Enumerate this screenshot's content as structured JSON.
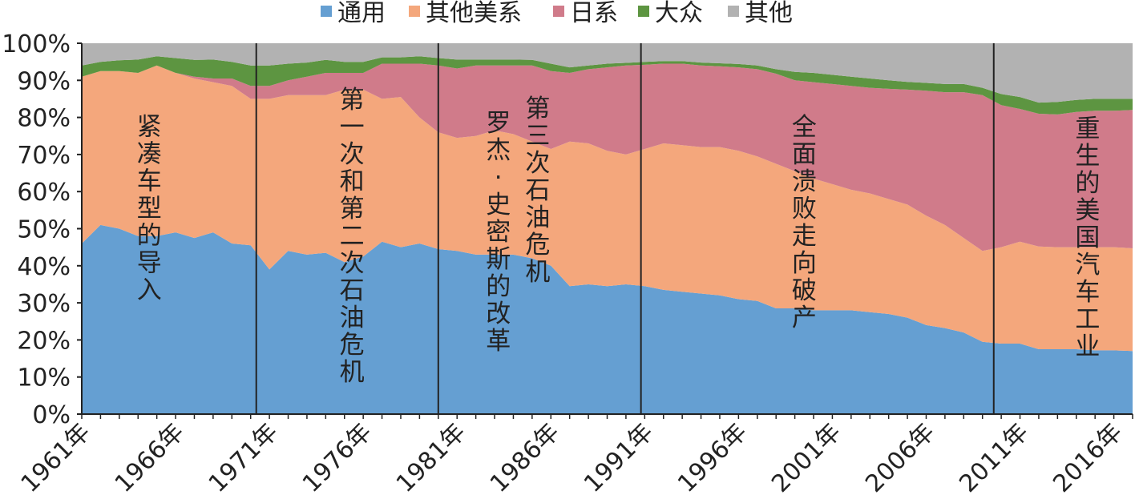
{
  "chart_data": {
    "type": "area",
    "stacked": true,
    "normalized": true,
    "x": [
      1961,
      1962,
      1963,
      1964,
      1965,
      1966,
      1967,
      1968,
      1969,
      1970,
      1971,
      1972,
      1973,
      1974,
      1975,
      1976,
      1977,
      1978,
      1979,
      1980,
      1981,
      1982,
      1983,
      1984,
      1985,
      1986,
      1987,
      1988,
      1989,
      1990,
      1991,
      1992,
      1993,
      1994,
      1995,
      1996,
      1997,
      1998,
      1999,
      2000,
      2001,
      2002,
      2003,
      2004,
      2005,
      2006,
      2007,
      2008,
      2009,
      2010,
      2011,
      2012,
      2013,
      2014,
      2015,
      2016,
      2017
    ],
    "x_tick_labels": [
      "1961年",
      "1966年",
      "1971年",
      "1976年",
      "1981年",
      "1986年",
      "1991年",
      "1996年",
      "2001年",
      "2006年",
      "2011年",
      "2016年"
    ],
    "y_tick_labels": [
      "0%",
      "10%",
      "20%",
      "30%",
      "40%",
      "50%",
      "60%",
      "70%",
      "80%",
      "90%",
      "100%"
    ],
    "ylim": [
      0,
      100
    ],
    "legend_position": "top",
    "series": [
      {
        "name": "通用",
        "color": "#659fd2",
        "cumulative": [
          46,
          51,
          50,
          48,
          48,
          49,
          47.5,
          49,
          46,
          45.5,
          39,
          44,
          43,
          43.5,
          41,
          42.5,
          46.5,
          45,
          46,
          44.5,
          44,
          43,
          43,
          43,
          42,
          40,
          34.5,
          35,
          34.5,
          35,
          34.5,
          33.5,
          33,
          32.5,
          32,
          31,
          30.5,
          28.5,
          28.5,
          28,
          28,
          28,
          27.5,
          27,
          26,
          24,
          23.2,
          22,
          19.5,
          19,
          19,
          17.5,
          17.5,
          17.5,
          17.2,
          17.2,
          17
        ]
      },
      {
        "name": "其他美系",
        "color": "#f4a77c",
        "cumulative": [
          91,
          92.5,
          92.5,
          92,
          94,
          92,
          90.5,
          89.5,
          88.5,
          85,
          85,
          86,
          86,
          86,
          87.5,
          87.5,
          85,
          85.5,
          80,
          76,
          74.5,
          75,
          76.5,
          75.5,
          73.5,
          71.5,
          73.5,
          73,
          71,
          70,
          71.5,
          73,
          72.5,
          72,
          72,
          71,
          69.5,
          67.5,
          65.5,
          63.5,
          62,
          60.5,
          59.5,
          58,
          56.5,
          53.5,
          51,
          47.5,
          44,
          45,
          46.5,
          45.2,
          45,
          45,
          45,
          45,
          44.7
        ]
      },
      {
        "name": "日系",
        "color": "#d07b8a",
        "cumulative": [
          91,
          92.5,
          92.5,
          92,
          94,
          92,
          91,
          90.5,
          90.5,
          88.5,
          88.5,
          90,
          91,
          92,
          92,
          92,
          94.5,
          94.5,
          94.5,
          94,
          93.2,
          94,
          94,
          94,
          94,
          92.5,
          92,
          93,
          93.5,
          94,
          94.2,
          94.5,
          94.5,
          94,
          93.8,
          93.5,
          93,
          91.8,
          90,
          89.5,
          89,
          88.5,
          88,
          87.7,
          87.5,
          87.2,
          86.8,
          86.8,
          86,
          83.3,
          82.3,
          81,
          80.8,
          81.5,
          81.8,
          81.8,
          82
        ]
      },
      {
        "name": "大众",
        "color": "#5d9541",
        "cumulative": [
          94,
          95,
          95.4,
          95.6,
          96.5,
          96,
          95.5,
          95.6,
          95,
          94,
          94,
          94.5,
          94.8,
          95.5,
          95,
          95,
          96.2,
          96.2,
          96.5,
          96,
          95.6,
          95.6,
          95.6,
          95.6,
          95.5,
          94.5,
          93.5,
          94,
          94.5,
          94.7,
          95,
          95.2,
          95.2,
          94.8,
          94.6,
          94.4,
          94,
          93,
          92.3,
          92,
          91.5,
          91,
          90.5,
          90,
          89.6,
          89.3,
          89,
          89,
          88,
          86.3,
          85.5,
          84,
          84.2,
          84.7,
          85,
          85,
          85
        ]
      },
      {
        "name": "其他",
        "color": "#b2b2b2",
        "cumulative": [
          100,
          100,
          100,
          100,
          100,
          100,
          100,
          100,
          100,
          100,
          100,
          100,
          100,
          100,
          100,
          100,
          100,
          100,
          100,
          100,
          100,
          100,
          100,
          100,
          100,
          100,
          100,
          100,
          100,
          100,
          100,
          100,
          100,
          100,
          100,
          100,
          100,
          100,
          100,
          100,
          100,
          100,
          100,
          100,
          100,
          100,
          100,
          100,
          100,
          100,
          100,
          100,
          100,
          100,
          100,
          100,
          100
        ]
      }
    ],
    "dividers": [
      1970.3,
      1980.0,
      1990.8,
      2009.6
    ],
    "annotations": [
      {
        "text": "紧凑车型的导入",
        "x_year": 1964.6,
        "top_pct": 81.3
      },
      {
        "text": "第一次和第二次石油危机",
        "x_year": 1975.4,
        "top_pct": 88.5
      },
      {
        "text": "罗杰·史密斯的改革",
        "x_year": 1983.2,
        "top_pct": 82.3
      },
      {
        "text": "第三次石油危机",
        "x_year": 1985.3,
        "top_pct": 86.2
      },
      {
        "text": "全面溃败走向破产",
        "x_year": 1999.5,
        "top_pct": 81.2
      },
      {
        "text": "重生的美国汽车工业",
        "x_year": 2014.6,
        "top_pct": 80.8
      }
    ]
  }
}
